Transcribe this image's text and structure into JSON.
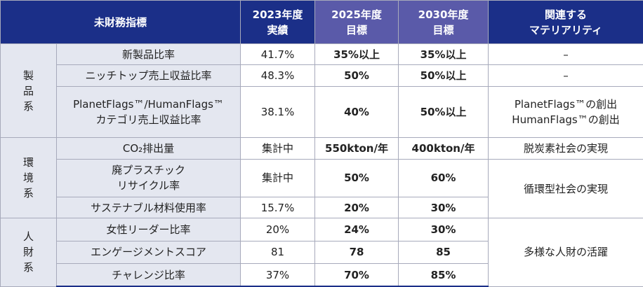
{
  "header": {
    "metric": "未財務指標",
    "actual": [
      "2023年度",
      "実績"
    ],
    "target2025": [
      "2025年度",
      "目標"
    ],
    "target2030": [
      "2030年度",
      "目標"
    ],
    "materiality": [
      "関連する",
      "マテリアリティ"
    ]
  },
  "groups": [
    {
      "category": [
        "製",
        "品",
        "系"
      ],
      "rows": [
        {
          "metric": [
            "新製品比率"
          ],
          "actual": "41.7%",
          "t2025": "35%以上",
          "t2030": "35%以上",
          "materiality": [
            "–"
          ]
        },
        {
          "metric": [
            "ニッチトップ売上収益比率"
          ],
          "actual": "48.3%",
          "t2025": "50%",
          "t2030": "50%以上",
          "materiality": [
            "–"
          ]
        },
        {
          "metric": [
            "PlanetFlags™/HumanFlags™",
            "カテゴリ売上収益比率"
          ],
          "actual": "38.1%",
          "t2025": "40%",
          "t2030": "50%以上",
          "materiality": [
            "PlanetFlags™の創出",
            "HumanFlags™の創出"
          ]
        }
      ]
    },
    {
      "category": [
        "環",
        "境",
        "系"
      ],
      "rows": [
        {
          "metric": [
            "CO₂排出量"
          ],
          "actual": "集計中",
          "t2025": "550kton/年",
          "t2030": "400kton/年",
          "materiality": [
            "脱炭素社会の実現"
          ]
        },
        {
          "metric": [
            "廃プラスチック",
            "リサイクル率"
          ],
          "actual": "集計中",
          "t2025": "50%",
          "t2030": "60%",
          "materiality": [
            "循環型社会の実現"
          ]
        },
        {
          "metric": [
            "サステナブル材料使用率"
          ],
          "actual": "15.7%",
          "t2025": "20%",
          "t2030": "30%"
        }
      ]
    },
    {
      "category": [
        "人",
        "財",
        "系"
      ],
      "rows": [
        {
          "metric": [
            "女性リーダー比率"
          ],
          "actual": "20%",
          "t2025": "24%",
          "t2030": "30%",
          "materiality": [
            "多様な人財の活躍"
          ]
        },
        {
          "metric": [
            "エンゲージメントスコア"
          ],
          "actual": "81",
          "t2025": "78",
          "t2030": "85"
        },
        {
          "metric": [
            "チャレンジ比率"
          ],
          "actual": "37%",
          "t2025": "70%",
          "t2030": "85%"
        }
      ]
    }
  ],
  "colors": {
    "header_bg": "#1b2f88",
    "target_header_bg": "#5a5aa9",
    "row_shade": "#e4e7f0",
    "border": "#a7aabb"
  }
}
